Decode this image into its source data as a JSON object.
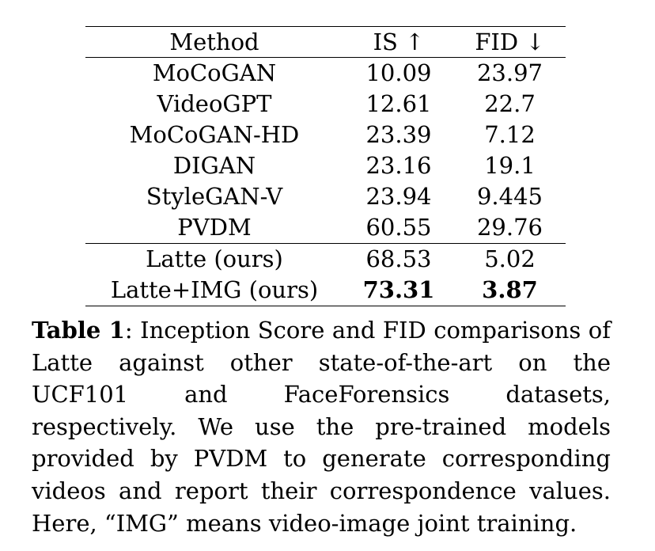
{
  "table": {
    "headers": [
      "Method",
      "IS ↑",
      "FID ↓"
    ],
    "groups": [
      [
        {
          "method": "MoCoGAN",
          "is": "10.09",
          "fid": "23.97"
        },
        {
          "method": "VideoGPT",
          "is": "12.61",
          "fid": "22.7"
        },
        {
          "method": "MoCoGAN-HD",
          "is": "23.39",
          "fid": "7.12"
        },
        {
          "method": "DIGAN",
          "is": "23.16",
          "fid": "19.1"
        },
        {
          "method": "StyleGAN-V",
          "is": "23.94",
          "fid": "9.445"
        },
        {
          "method": "PVDM",
          "is": "60.55",
          "fid": "29.76"
        }
      ],
      [
        {
          "method": "Latte (ours)",
          "is": "68.53",
          "fid": "5.02"
        },
        {
          "method": "Latte+IMG (ours)",
          "is": "73.31",
          "fid": "3.87",
          "bold": true
        }
      ]
    ]
  },
  "caption": {
    "label": "Table 1",
    "text": ": Inception Score and FID comparisons of Latte against other state-of-the-art on the UCF101 and FaceForensics datasets, respectively. We use the pre-trained models provided by PVDM to generate corresponding videos and report their correspondence values. Here, “IMG” means video-image joint training."
  }
}
